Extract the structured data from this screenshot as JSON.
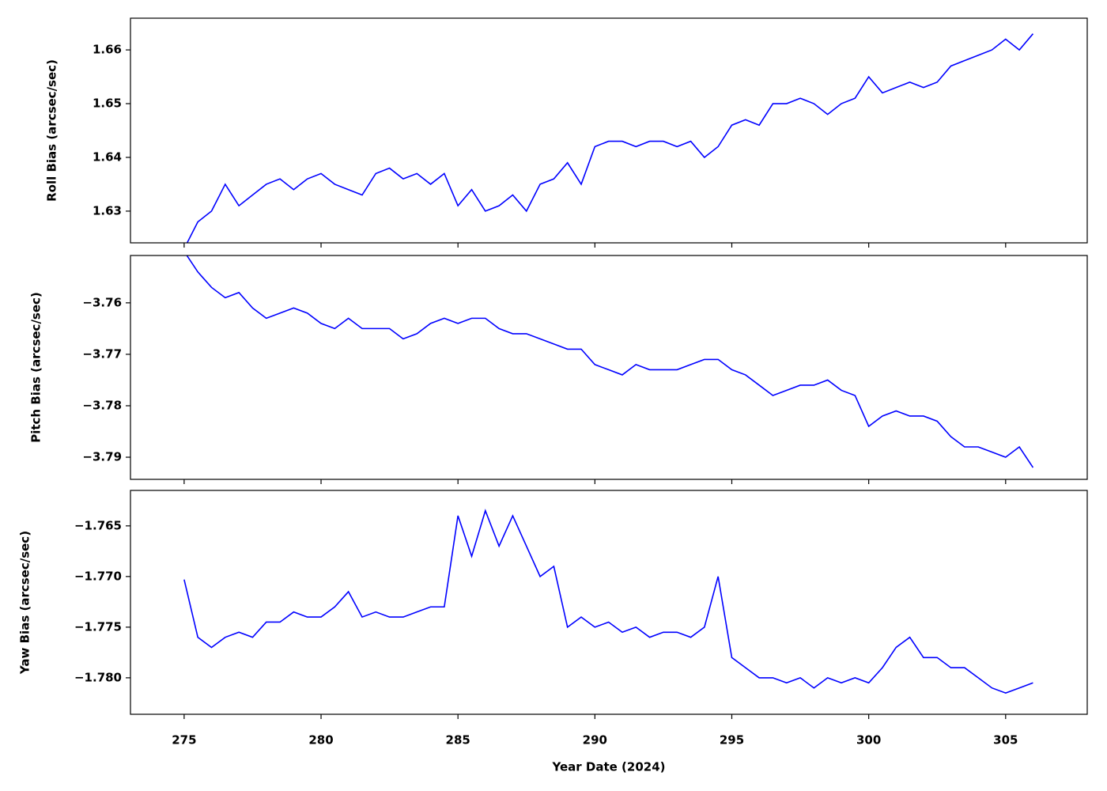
{
  "chart_data": [
    {
      "type": "line",
      "ylabel": "Roll Bias (arcsec/sec)",
      "show_xtick_labels": false,
      "x": [
        275.0,
        275.5,
        276.0,
        276.5,
        277.0,
        277.5,
        278.0,
        278.5,
        279.0,
        279.5,
        280.0,
        280.5,
        281.0,
        281.5,
        282.0,
        282.5,
        283.0,
        283.5,
        284.0,
        284.5,
        285.0,
        285.5,
        286.0,
        286.5,
        287.0,
        287.5,
        288.0,
        288.5,
        289.0,
        289.5,
        290.0,
        290.5,
        291.0,
        291.5,
        292.0,
        292.5,
        293.0,
        293.5,
        294.0,
        294.5,
        295.0,
        295.5,
        296.0,
        296.5,
        297.0,
        297.5,
        298.0,
        298.5,
        299.0,
        299.5,
        300.0,
        300.5,
        301.0,
        301.5,
        302.0,
        302.5,
        303.0,
        303.5,
        304.0,
        304.5,
        305.0,
        305.5,
        306.0
      ],
      "series": [
        {
          "color": "#0000ff",
          "values": [
            1.623,
            1.628,
            1.63,
            1.635,
            1.631,
            1.633,
            1.635,
            1.636,
            1.634,
            1.636,
            1.637,
            1.635,
            1.634,
            1.633,
            1.637,
            1.638,
            1.636,
            1.637,
            1.635,
            1.637,
            1.631,
            1.634,
            1.63,
            1.631,
            1.633,
            1.63,
            1.635,
            1.636,
            1.639,
            1.635,
            1.642,
            1.643,
            1.643,
            1.642,
            1.643,
            1.643,
            1.642,
            1.643,
            1.64,
            1.642,
            1.646,
            1.647,
            1.646,
            1.65,
            1.65,
            1.651,
            1.65,
            1.648,
            1.65,
            1.651,
            1.655,
            1.652,
            1.653,
            1.654,
            1.653,
            1.654,
            1.657,
            1.658,
            1.659,
            1.66,
            1.662,
            1.66,
            1.663
          ]
        }
      ],
      "xlim": [
        273.04,
        307.98
      ],
      "xticks": [
        275,
        280,
        285,
        290,
        295,
        300,
        305
      ],
      "ylim": [
        1.6241,
        1.6659
      ],
      "yticks": [
        1.63,
        1.64,
        1.65,
        1.66
      ]
    },
    {
      "type": "line",
      "ylabel": "Pitch Bias (arcsec/sec)",
      "show_xtick_labels": false,
      "x": [
        275.0,
        275.5,
        276.0,
        276.5,
        277.0,
        277.5,
        278.0,
        278.5,
        279.0,
        279.5,
        280.0,
        280.5,
        281.0,
        281.5,
        282.0,
        282.5,
        283.0,
        283.5,
        284.0,
        284.5,
        285.0,
        285.5,
        286.0,
        286.5,
        287.0,
        287.5,
        288.0,
        288.5,
        289.0,
        289.5,
        290.0,
        290.5,
        291.0,
        291.5,
        292.0,
        292.5,
        293.0,
        293.5,
        294.0,
        294.5,
        295.0,
        295.5,
        296.0,
        296.5,
        297.0,
        297.5,
        298.0,
        298.5,
        299.0,
        299.5,
        300.0,
        300.5,
        301.0,
        301.5,
        302.0,
        302.5,
        303.0,
        303.5,
        304.0,
        304.5,
        305.0,
        305.5,
        306.0
      ],
      "series": [
        {
          "color": "#0000ff",
          "values": [
            -3.75,
            -3.754,
            -3.757,
            -3.759,
            -3.758,
            -3.761,
            -3.763,
            -3.762,
            -3.761,
            -3.762,
            -3.764,
            -3.765,
            -3.763,
            -3.765,
            -3.765,
            -3.765,
            -3.767,
            -3.766,
            -3.764,
            -3.763,
            -3.764,
            -3.763,
            -3.763,
            -3.765,
            -3.766,
            -3.766,
            -3.767,
            -3.768,
            -3.769,
            -3.769,
            -3.772,
            -3.773,
            -3.774,
            -3.772,
            -3.773,
            -3.773,
            -3.773,
            -3.772,
            -3.771,
            -3.771,
            -3.773,
            -3.774,
            -3.776,
            -3.778,
            -3.777,
            -3.776,
            -3.776,
            -3.775,
            -3.777,
            -3.778,
            -3.784,
            -3.782,
            -3.781,
            -3.782,
            -3.782,
            -3.783,
            -3.786,
            -3.788,
            -3.788,
            -3.789,
            -3.79,
            -3.788,
            -3.792
          ]
        }
      ],
      "xlim": [
        273.04,
        307.98
      ],
      "xticks": [
        275,
        280,
        285,
        290,
        295,
        300,
        305
      ],
      "ylim": [
        -3.7943,
        -3.7508
      ],
      "yticks": [
        {
          "value": -3.79,
          "label": "−3.79"
        },
        {
          "value": -3.78,
          "label": "−3.78"
        },
        {
          "value": -3.77,
          "label": "−3.77"
        },
        {
          "value": -3.76,
          "label": "−3.76"
        }
      ]
    },
    {
      "type": "line",
      "ylabel": "Yaw Bias (arcsec/sec)",
      "xlabel": "Year Date (2024)",
      "show_xtick_labels": true,
      "x": [
        275.0,
        275.5,
        276.0,
        276.5,
        277.0,
        277.5,
        278.0,
        278.5,
        279.0,
        279.5,
        280.0,
        280.5,
        281.0,
        281.5,
        282.0,
        282.5,
        283.0,
        283.5,
        284.0,
        284.5,
        285.0,
        285.5,
        286.0,
        286.5,
        287.0,
        287.5,
        288.0,
        288.5,
        289.0,
        289.5,
        290.0,
        290.5,
        291.0,
        291.5,
        292.0,
        292.5,
        293.0,
        293.5,
        294.0,
        294.5,
        295.0,
        295.5,
        296.0,
        296.5,
        297.0,
        297.5,
        298.0,
        298.5,
        299.0,
        299.5,
        300.0,
        300.5,
        301.0,
        301.5,
        302.0,
        302.5,
        303.0,
        303.5,
        304.0,
        304.5,
        305.0,
        305.5,
        306.0
      ],
      "series": [
        {
          "color": "#0000ff",
          "values": [
            -1.7703,
            -1.776,
            -1.777,
            -1.776,
            -1.7755,
            -1.776,
            -1.7745,
            -1.7745,
            -1.7735,
            -1.774,
            -1.774,
            -1.773,
            -1.7715,
            -1.774,
            -1.7735,
            -1.774,
            -1.774,
            -1.7735,
            -1.773,
            -1.773,
            -1.764,
            -1.768,
            -1.7635,
            -1.767,
            -1.764,
            -1.767,
            -1.77,
            -1.769,
            -1.775,
            -1.774,
            -1.775,
            -1.7745,
            -1.7755,
            -1.775,
            -1.776,
            -1.7755,
            -1.7755,
            -1.776,
            -1.775,
            -1.77,
            -1.778,
            -1.779,
            -1.78,
            -1.78,
            -1.7805,
            -1.78,
            -1.781,
            -1.78,
            -1.7805,
            -1.78,
            -1.7805,
            -1.779,
            -1.777,
            -1.776,
            -1.778,
            -1.778,
            -1.779,
            -1.779,
            -1.78,
            -1.781,
            -1.7815,
            -1.781,
            -1.7805
          ]
        }
      ],
      "xlim": [
        273.04,
        307.98
      ],
      "xticks": [
        275,
        280,
        285,
        290,
        295,
        300,
        305
      ],
      "ylim": [
        -1.7836,
        -1.7615
      ],
      "yticks": [
        {
          "value": -1.78,
          "label": "−1.780"
        },
        {
          "value": -1.775,
          "label": "−1.775"
        },
        {
          "value": -1.77,
          "label": "−1.770"
        },
        {
          "value": -1.765,
          "label": "−1.765"
        }
      ]
    }
  ]
}
